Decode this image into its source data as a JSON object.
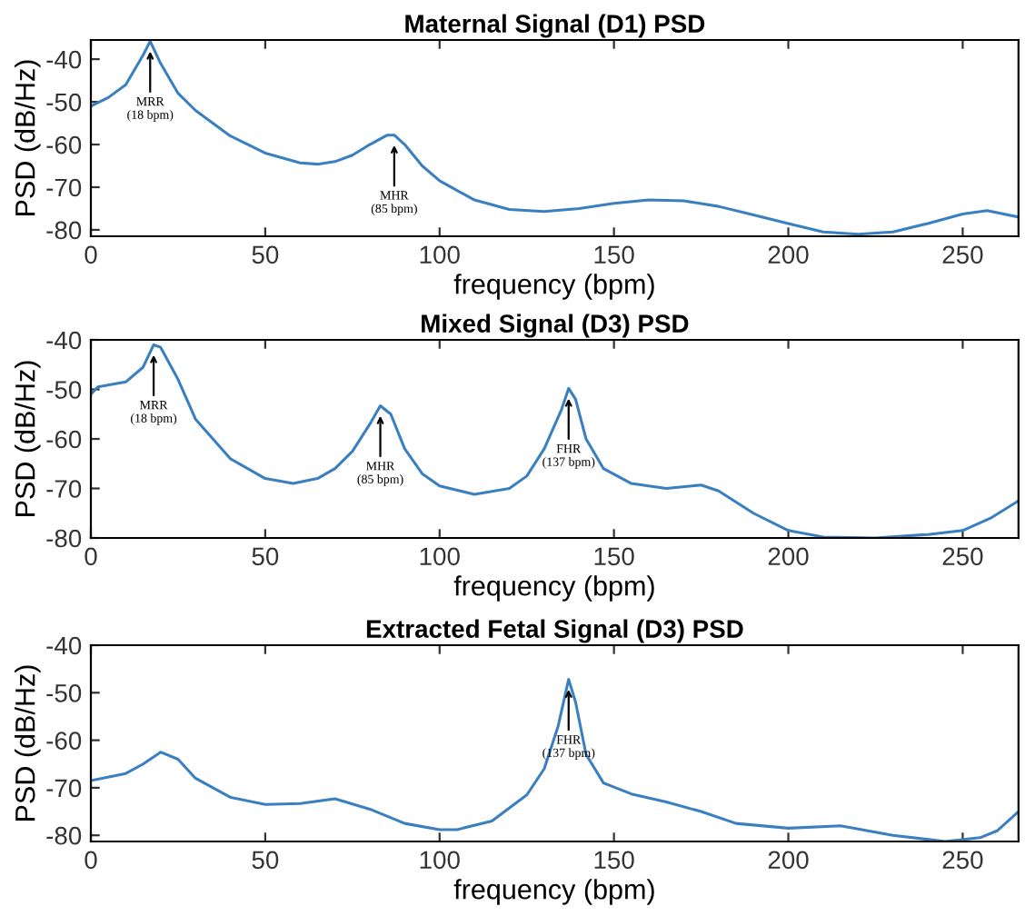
{
  "chart_data": [
    {
      "type": "line",
      "title": "Maternal Signal (D1) PSD",
      "xlabel": "frequency (bpm)",
      "ylabel": "PSD (dB/Hz)",
      "xlim": [
        0,
        266
      ],
      "ylim": [
        -81.5,
        -35.5
      ],
      "xticks": [
        0,
        50,
        100,
        150,
        200,
        250
      ],
      "yticks": [
        -80,
        -70,
        -60,
        -50,
        -40
      ],
      "grid": false,
      "legend": false,
      "x": [
        0,
        5,
        10,
        15,
        17,
        20,
        25,
        30,
        40,
        50,
        60,
        65,
        70,
        75,
        80,
        85,
        87,
        90,
        95,
        100,
        110,
        120,
        130,
        140,
        150,
        160,
        170,
        180,
        190,
        200,
        210,
        220,
        230,
        240,
        250,
        257,
        266
      ],
      "series": [
        {
          "color": "#3a7fc0",
          "values": [
            -51,
            -49,
            -46,
            -39,
            -35.8,
            -41,
            -48,
            -52,
            -58,
            -62,
            -64.3,
            -64.6,
            -64,
            -62.5,
            -60,
            -57.8,
            -57.8,
            -60,
            -65,
            -68.5,
            -73,
            -75.2,
            -75.7,
            -75,
            -73.8,
            -73,
            -73.2,
            -74.5,
            -76.5,
            -78.5,
            -80.5,
            -81,
            -80.5,
            -78.5,
            -76.3,
            -75.5,
            -77
          ]
        }
      ],
      "annotations": [
        {
          "text": "MRR\n(18 bpm)",
          "x": 17,
          "y": -35.8
        },
        {
          "text": "MHR\n(85 bpm)",
          "x": 87,
          "y": -57.8
        }
      ]
    },
    {
      "type": "line",
      "title": "Mixed Signal (D3) PSD",
      "xlabel": "frequency (bpm)",
      "ylabel": "PSD (dB/Hz)",
      "xlim": [
        0,
        266
      ],
      "ylim": [
        -80,
        -40
      ],
      "xticks": [
        0,
        50,
        100,
        150,
        200,
        250
      ],
      "yticks": [
        -80,
        -70,
        -60,
        -50,
        -40
      ],
      "grid": false,
      "legend": false,
      "x": [
        0,
        2,
        10,
        15,
        18,
        20,
        25,
        30,
        40,
        50,
        58,
        65,
        70,
        75,
        80,
        83,
        86,
        90,
        95,
        100,
        110,
        120,
        125,
        130,
        135,
        137,
        139,
        142,
        147,
        155,
        165,
        175,
        180,
        190,
        200,
        210,
        225,
        240,
        250,
        258,
        266
      ],
      "series": [
        {
          "color": "#3a7fc0",
          "values": [
            -51,
            -49.5,
            -48.5,
            -45.5,
            -41,
            -41.5,
            -48,
            -56,
            -64,
            -68,
            -69,
            -68,
            -66,
            -62.5,
            -57,
            -53.3,
            -55,
            -62,
            -67,
            -69.5,
            -71.2,
            -70,
            -67.5,
            -62,
            -54,
            -49.8,
            -52,
            -60,
            -66,
            -69,
            -70,
            -69.3,
            -70.5,
            -75,
            -78.5,
            -79.8,
            -80,
            -79.3,
            -78.5,
            -76,
            -72.5
          ]
        }
      ],
      "annotations": [
        {
          "text": "MRR\n(18 bpm)",
          "x": 18,
          "y": -41
        },
        {
          "text": "MHR\n(85 bpm)",
          "x": 83,
          "y": -53.3
        },
        {
          "text": "FHR\n(137 bpm)",
          "x": 137,
          "y": -49.8
        }
      ]
    },
    {
      "type": "line",
      "title": "Extracted Fetal Signal (D3) PSD",
      "xlabel": "frequency (bpm)",
      "ylabel": "PSD (dB/Hz)",
      "xlim": [
        0,
        266
      ],
      "ylim": [
        -81.3,
        -40
      ],
      "xticks": [
        0,
        50,
        100,
        150,
        200,
        250
      ],
      "yticks": [
        -80,
        -70,
        -60,
        -50,
        -40
      ],
      "grid": false,
      "legend": false,
      "x": [
        0,
        10,
        15,
        20,
        25,
        30,
        40,
        50,
        60,
        70,
        80,
        90,
        100,
        105,
        115,
        125,
        130,
        134,
        137,
        139,
        142,
        147,
        155,
        165,
        175,
        185,
        200,
        215,
        230,
        245,
        255,
        260,
        266
      ],
      "series": [
        {
          "color": "#3a7fc0",
          "values": [
            -68.5,
            -67,
            -65,
            -62.5,
            -64,
            -68,
            -72,
            -73.5,
            -73.3,
            -72.3,
            -74.5,
            -77.5,
            -78.8,
            -78.8,
            -77,
            -71.5,
            -66,
            -57,
            -47.2,
            -52,
            -63,
            -69,
            -71.3,
            -73,
            -75,
            -77.5,
            -78.5,
            -78,
            -80,
            -81.3,
            -80.5,
            -79,
            -75
          ]
        }
      ],
      "annotations": [
        {
          "text": "FHR\n(137 bpm)",
          "x": 137,
          "y": -47.2
        }
      ]
    }
  ]
}
